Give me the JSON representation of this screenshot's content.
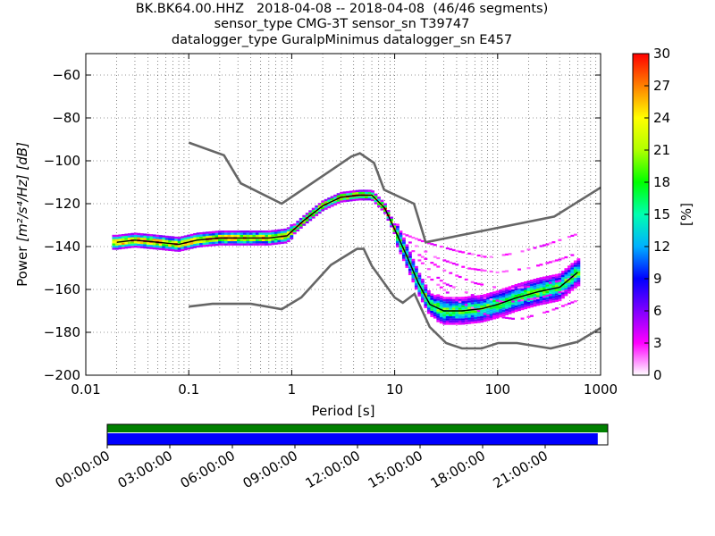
{
  "title_lines": [
    "BK.BK64.00.HHZ   2018-04-08 -- 2018-04-08  (46/46 segments)",
    "sensor_type CMG-3T sensor_sn T39747",
    "datalogger_type GuralpMinimus datalogger_sn E457"
  ],
  "chart_data": {
    "type": "heatmap",
    "title": "BK.BK64.00.HHZ   2018-04-08 -- 2018-04-08  (46/46 segments)",
    "xlabel": "Period [s]",
    "ylabel": "Power",
    "ylabel_unit": "[m²/s⁴/Hz] [dB]",
    "xscale": "log",
    "xlim": [
      0.01,
      1000
    ],
    "ylim": [
      -200,
      -50
    ],
    "x_ticks": [
      0.01,
      0.1,
      1,
      10,
      100,
      1000
    ],
    "x_tick_labels": [
      "0.01",
      "0.1",
      "1",
      "10",
      "100",
      "1000"
    ],
    "y_ticks": [
      -200,
      -180,
      -160,
      -140,
      -120,
      -100,
      -80,
      -60
    ],
    "y_tick_labels": [
      "−200",
      "−180",
      "−160",
      "−140",
      "−120",
      "−100",
      "−80",
      "−60"
    ],
    "grid": true,
    "colorbar": {
      "label": "[%]",
      "min": 0,
      "max": 30,
      "ticks": [
        0,
        3,
        6,
        9,
        12,
        15,
        18,
        21,
        24,
        27,
        30
      ],
      "colors": [
        "#ffffff",
        "#ff00ff",
        "#8000ff",
        "#0000ff",
        "#00b0ff",
        "#00ffb0",
        "#00ff00",
        "#b0ff00",
        "#ffff00",
        "#ff8000",
        "#ff0000"
      ]
    },
    "noise_models": {
      "high": {
        "period": [
          0.1,
          0.22,
          0.32,
          0.8,
          3.8,
          4.6,
          6.3,
          7.9,
          15.4,
          20,
          354.8,
          1000
        ],
        "power": [
          -91.5,
          -97.4,
          -110.5,
          -120,
          -98,
          -96.5,
          -101,
          -113.5,
          -120,
          -138,
          -126,
          -112.5
        ]
      },
      "low": {
        "period": [
          0.1,
          0.17,
          0.4,
          0.8,
          1.24,
          2.4,
          4.3,
          5,
          6,
          10,
          12,
          15.6,
          21.9,
          31.6,
          45,
          70,
          101,
          154,
          328,
          600,
          1000
        ],
        "power": [
          -168,
          -166.7,
          -166.7,
          -169.2,
          -163.7,
          -148.6,
          -141.1,
          -141.1,
          -149,
          -163.8,
          -166.2,
          -162.1,
          -177.5,
          -185,
          -187.5,
          -187.5,
          -185,
          -185,
          -187.5,
          -184.4,
          -178
        ]
      }
    },
    "mode_curve": {
      "period": [
        0.02,
        0.03,
        0.05,
        0.08,
        0.12,
        0.2,
        0.35,
        0.6,
        0.9,
        1.3,
        2,
        3,
        4.5,
        6,
        8,
        10,
        13,
        17,
        22,
        30,
        45,
        70,
        100,
        150,
        250,
        400,
        600
      ],
      "power": [
        -138,
        -137,
        -138,
        -139,
        -137,
        -136,
        -136,
        -136,
        -135,
        -128,
        -121,
        -117,
        -116,
        -116,
        -122,
        -132,
        -144,
        -157,
        -167,
        -170,
        -170,
        -169,
        -167,
        -164,
        -161,
        -159,
        -152
      ]
    },
    "spur_curves": [
      {
        "period": [
          12,
          20,
          40,
          80,
          150,
          300,
          600
        ],
        "power": [
          -134,
          -138,
          -142,
          -145,
          -143,
          -139,
          -134
        ]
      },
      {
        "period": [
          14,
          25,
          50,
          100,
          200,
          400,
          600
        ],
        "power": [
          -138,
          -145,
          -150,
          -152,
          -150,
          -146,
          -143
        ]
      },
      {
        "period": [
          15,
          30,
          60,
          120,
          250,
          500,
          600
        ],
        "power": [
          -142,
          -151,
          -157,
          -160,
          -158,
          -155,
          -152
        ]
      },
      {
        "period": [
          17,
          30,
          60,
          120,
          250,
          500,
          600
        ],
        "power": [
          -146,
          -157,
          -163,
          -166,
          -164,
          -160,
          -156
        ]
      },
      {
        "period": [
          20,
          40,
          80,
          160,
          320,
          600
        ],
        "power": [
          -153,
          -165,
          -172,
          -174,
          -170,
          -165
        ]
      }
    ]
  },
  "timeline": {
    "tick_labels": [
      "00:00:00",
      "03:00:00",
      "06:00:00",
      "09:00:00",
      "12:00:00",
      "15:00:00",
      "18:00:00",
      "21:00:00"
    ],
    "green_coverage": 1.0,
    "blue_coverage": 0.98,
    "colors": {
      "green": "#008000",
      "blue": "#0000ff"
    }
  }
}
